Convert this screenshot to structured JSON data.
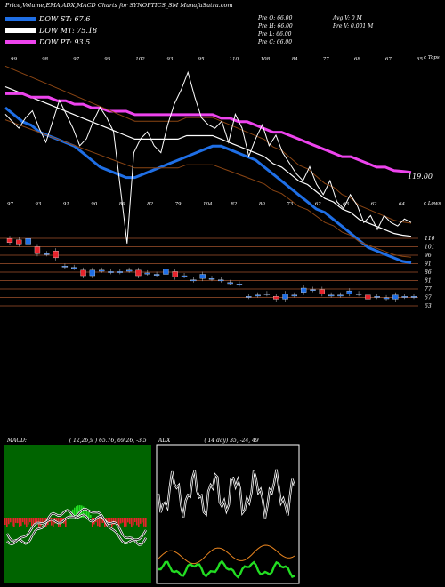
{
  "title": "Price,Volume,EMA,ADX,MACD Charts for SYNOPTICS_SM MunafaSutra.com",
  "legend": [
    {
      "label": "DOW ST: 67.6",
      "color": "#1f6fe6"
    },
    {
      "label": "DOW MT: 75.18",
      "color": "#ffffff"
    },
    {
      "label": "DOW PT: 93.5",
      "color": "#ee44ee"
    }
  ],
  "ohlc": {
    "open": "Pre  O: 66.00",
    "high": "Pre  H: 66.00",
    "low": "Pre  L: 66.00",
    "close": "Pre  C: 66.00",
    "avg": "Avg V: 0  M",
    "vol": "Pre  V: 0.001 M"
  },
  "tops_label": "c Tops",
  "lows_label": "c Lows",
  "top_numbers": [
    "99",
    "98",
    "97",
    "95",
    "102",
    "93",
    "95",
    "110",
    "108",
    "84",
    "77",
    "68",
    "67",
    "65"
  ],
  "low_numbers": [
    "97",
    "93",
    "91",
    "90",
    "89",
    "82",
    "79",
    "104",
    "82",
    "80",
    "73",
    "62",
    "63",
    "62",
    "64"
  ],
  "current_price_label": "119.00",
  "price_levels": [
    "110",
    "101",
    "96",
    "91",
    "86",
    "81",
    "77",
    "67",
    "63"
  ],
  "colors": {
    "up": "#1f6fe6",
    "down": "#e8232b",
    "grid": "#a0522d",
    "ema_fast": "#1f6fe6",
    "ema_slow": "#ee44ee"
  },
  "macd": {
    "title": "MACD:",
    "values": "( 12,26,9 ) 65.76,  69.26,  -3.5"
  },
  "adx": {
    "title": "ADX",
    "values": "( 14  day) 35,  -24,  49"
  },
  "chart_data": {
    "type": "line",
    "title": "Price,Volume,EMA,ADX,MACD Charts for SYNOPTICS_SM MunafaSutra.com",
    "series": [
      {
        "name": "DOW ST: 67.6",
        "values": [
          112,
          110,
          108,
          107,
          105,
          104,
          103,
          102,
          101,
          99,
          97,
          95,
          94,
          93,
          92,
          92,
          93,
          94,
          95,
          96,
          97,
          98,
          99,
          100,
          101,
          101,
          100,
          99,
          98,
          97,
          95,
          93,
          91,
          89,
          87,
          85,
          83,
          82,
          80,
          78,
          76,
          74,
          72,
          71,
          70,
          69,
          68,
          67.6
        ]
      },
      {
        "name": "DOW MT: 75.18",
        "values": [
          118,
          117,
          116,
          115,
          114,
          113,
          112,
          111,
          110,
          109,
          108,
          107,
          106,
          105,
          104,
          103,
          103,
          103,
          103,
          103,
          103,
          104,
          104,
          104,
          104,
          103,
          102,
          101,
          100,
          99,
          98,
          96,
          95,
          93,
          91,
          90,
          88,
          86,
          85,
          83,
          82,
          80,
          79,
          78,
          77,
          76,
          75.5,
          75.18
        ]
      },
      {
        "name": "DOW PT: 93.5",
        "values": [
          116,
          116,
          116,
          115,
          115,
          115,
          114,
          114,
          113,
          113,
          112,
          112,
          111,
          111,
          111,
          110,
          110,
          110,
          110,
          110,
          110,
          110,
          110,
          110,
          110,
          109,
          109,
          108,
          108,
          107,
          106,
          105,
          105,
          104,
          103,
          102,
          101,
          100,
          99,
          98,
          98,
          97,
          96,
          95,
          95,
          94,
          93.8,
          93.5
        ]
      }
    ],
    "candles": [
      {
        "o": 108,
        "c": 105
      },
      {
        "o": 107,
        "c": 104
      },
      {
        "o": 104,
        "c": 108
      },
      {
        "o": 102,
        "c": 97
      },
      {
        "o": 97,
        "c": 97
      },
      {
        "o": 99,
        "c": 94
      },
      {
        "o": 88,
        "c": 88
      },
      {
        "o": 87,
        "c": 87
      },
      {
        "o": 85,
        "c": 81
      },
      {
        "o": 81,
        "c": 85
      },
      {
        "o": 85,
        "c": 85
      },
      {
        "o": 84,
        "c": 84
      },
      {
        "o": 84,
        "c": 84
      },
      {
        "o": 85,
        "c": 85
      },
      {
        "o": 85,
        "c": 81
      },
      {
        "o": 83,
        "c": 83
      },
      {
        "o": 82,
        "c": 82
      },
      {
        "o": 82,
        "c": 86
      },
      {
        "o": 84,
        "c": 80
      },
      {
        "o": 81,
        "c": 81
      },
      {
        "o": 78,
        "c": 78
      },
      {
        "o": 79,
        "c": 82
      },
      {
        "o": 79,
        "c": 79
      },
      {
        "o": 78,
        "c": 78
      },
      {
        "o": 76,
        "c": 76
      },
      {
        "o": 75,
        "c": 75
      },
      {
        "o": 66,
        "c": 66
      },
      {
        "o": 67,
        "c": 67
      },
      {
        "o": 68,
        "c": 68
      },
      {
        "o": 66,
        "c": 64
      },
      {
        "o": 64,
        "c": 68
      },
      {
        "o": 67,
        "c": 67
      },
      {
        "o": 69,
        "c": 72
      },
      {
        "o": 71,
        "c": 71
      },
      {
        "o": 71,
        "c": 68
      },
      {
        "o": 67,
        "c": 67
      },
      {
        "o": 67,
        "c": 67
      },
      {
        "o": 68,
        "c": 70
      },
      {
        "o": 68,
        "c": 68
      },
      {
        "o": 67,
        "c": 64
      },
      {
        "o": 66,
        "c": 66
      },
      {
        "o": 65,
        "c": 65
      },
      {
        "o": 64,
        "c": 67
      },
      {
        "o": 66,
        "c": 66
      },
      {
        "o": 66,
        "c": 66
      }
    ],
    "ylim": [
      55,
      125
    ],
    "grid": true,
    "legend_placement": "top-left"
  }
}
